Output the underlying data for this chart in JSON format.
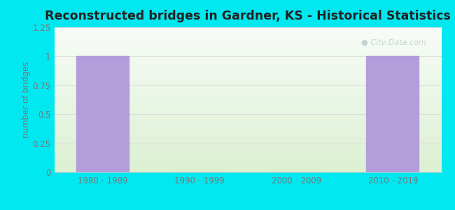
{
  "title": "Reconstructed bridges in Gardner, KS - Historical Statistics",
  "categories": [
    "1980 - 1989",
    "1990 - 1999",
    "2000 - 2009",
    "2010 - 2019"
  ],
  "values": [
    1,
    0,
    0,
    1
  ],
  "bar_color": "#b39ddb",
  "bar_edgecolor": "#b39ddb",
  "ylabel": "number of bridges",
  "ylim": [
    0,
    1.25
  ],
  "yticks": [
    0,
    0.25,
    0.5,
    0.75,
    1,
    1.25
  ],
  "ytick_labels": [
    "0",
    "0.25",
    "0.5",
    "0.75",
    "1",
    "1.25"
  ],
  "outer_bg": "#00e8f0",
  "inner_bg_top": "#f5faf0",
  "inner_bg_bottom": "#e8f5e0",
  "title_color": "#222222",
  "axis_color": "#777777",
  "watermark_text": "City-Data.com",
  "watermark_color": "#bbcccc",
  "title_fontsize": 12.5,
  "ylabel_fontsize": 8.5,
  "tick_fontsize": 8.5,
  "grid_color": "#dddddd"
}
